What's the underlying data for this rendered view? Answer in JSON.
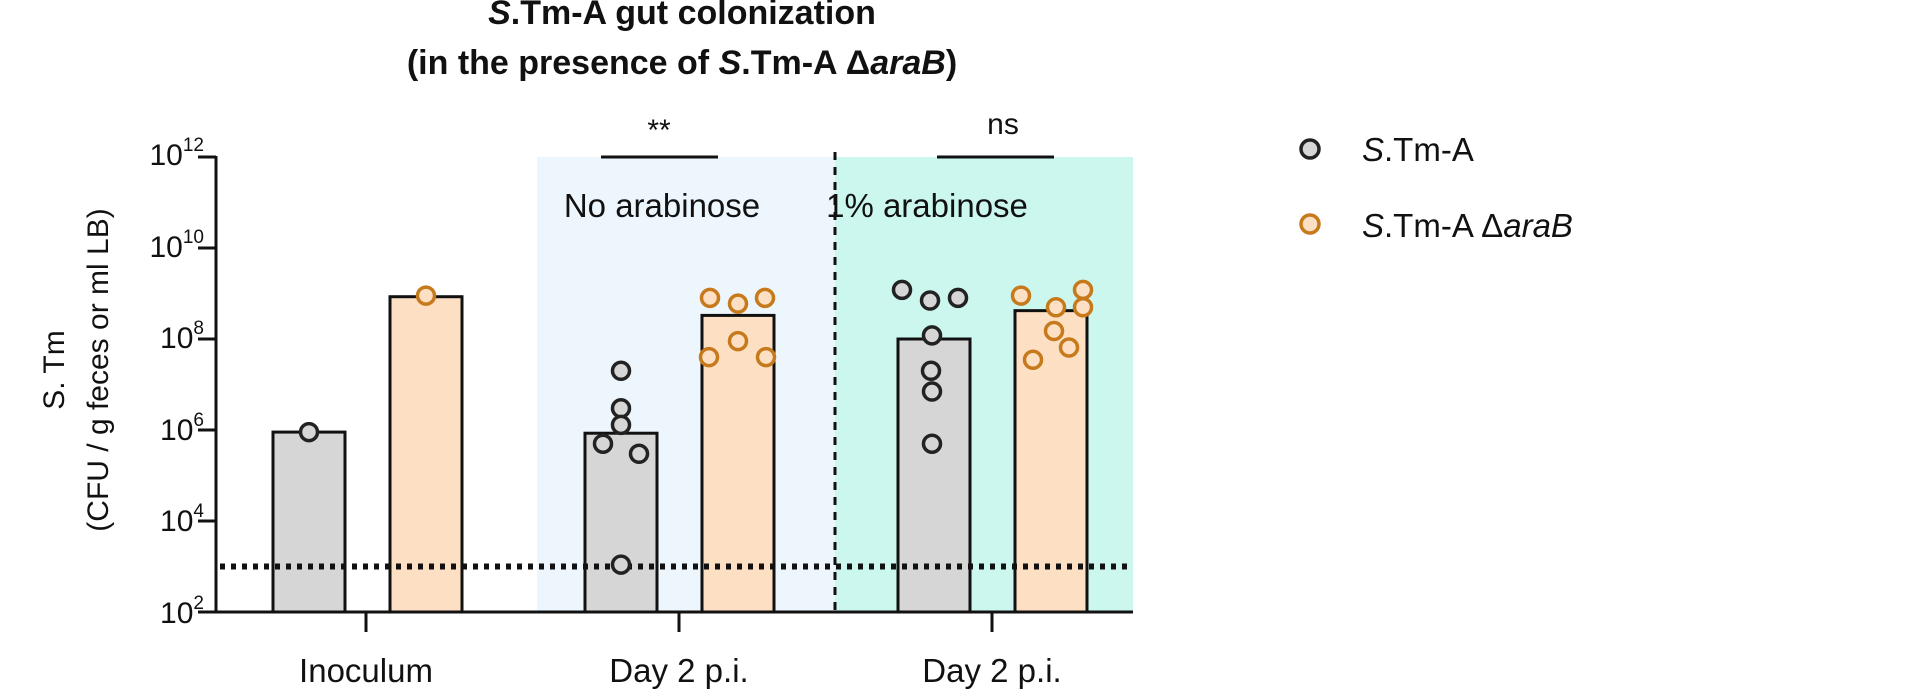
{
  "chart_data": {
    "type": "bar",
    "title_lines": [
      {
        "italic": "S",
        "rest": ".Tm-A gut colonization"
      },
      {
        "pre": "(in the presence of ",
        "italic": "S",
        "mid": ".Tm-A Δ",
        "italic2": "araB",
        "post": ")"
      }
    ],
    "ylabel_line1": "S. Tm",
    "ylabel_line2": "(CFU / g feces or ml LB)",
    "yscale": "log",
    "ylim_exp": [
      2,
      12
    ],
    "yticks": [
      {
        "base": "10",
        "exp": "2",
        "value": 2
      },
      {
        "base": "10",
        "exp": "4",
        "value": 4
      },
      {
        "base": "10",
        "exp": "6",
        "value": 6
      },
      {
        "base": "10",
        "exp": "8",
        "value": 8
      },
      {
        "base": "10",
        "exp": "10",
        "value": 10
      },
      {
        "base": "10",
        "exp": "12",
        "value": 12
      }
    ],
    "detection_limit": 1000,
    "categories": [
      "Inoculum",
      "Day 2 p.i.",
      "Day 2 p.i."
    ],
    "conditions": [
      "No arabinose",
      "1% arabinose"
    ],
    "condition_colors": [
      "#edf5fd",
      "#cbf7ee"
    ],
    "significance": [
      "**",
      "ns"
    ],
    "series": [
      {
        "name": "S.Tm-A",
        "name_parts": {
          "italic": "S",
          "rest": ".Tm-A",
          "italic2": ""
        },
        "bar_color": "#d6d6d6",
        "marker_color": "#d6d6d6",
        "marker_edge": "#222222",
        "bars": [
          900000,
          850000,
          100000000
        ],
        "points": [
          [
            900000
          ],
          [
            20000000,
            3000000,
            1300000,
            500000,
            300000,
            1100
          ],
          [
            1200000000,
            700000000,
            800000000,
            120000000,
            20000000,
            7000000,
            500000
          ]
        ]
      },
      {
        "name": "S.Tm-A ΔaraB",
        "name_parts": {
          "italic": "S",
          "rest": ".Tm-A Δ",
          "italic2": "araB"
        },
        "bar_color": "#fde0c4",
        "marker_color": "#fde0c4",
        "marker_edge": "#c77a1c",
        "bars": [
          850000000,
          330000000,
          420000000
        ],
        "points": [
          [
            900000000
          ],
          [
            800000000,
            600000000,
            800000000,
            40000000,
            90000000,
            40000000
          ],
          [
            900000000,
            500000000,
            1200000000,
            500000000,
            150000000,
            35000000,
            65000000
          ]
        ]
      }
    ],
    "legend_position": "right",
    "grid": false
  }
}
